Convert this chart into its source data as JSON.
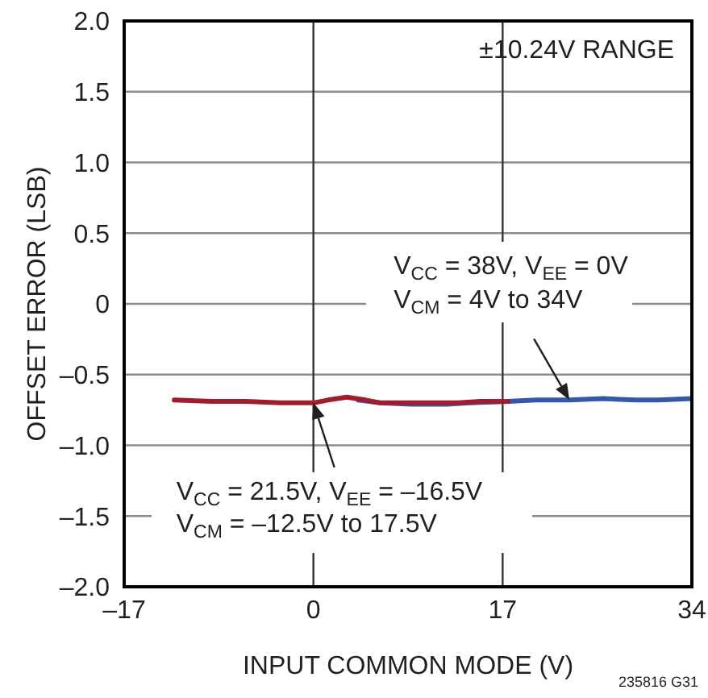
{
  "chart_data": {
    "type": "line",
    "xlabel": "INPUT COMMON MODE (V)",
    "ylabel": "OFFSET ERROR (LSB)",
    "annotations": [
      "±10.24V RANGE",
      "V$_{CC}$ = 38V, V$_{EE}$ = 0V\nV$_{CM}$ = 4V to 34V",
      "V$_{CC}$ = 21.5V, V$_{EE}$ = –16.5V\nV$_{CM}$ = –12.5V to 17.5V",
      "235816 G31"
    ],
    "series": [
      {
        "color": "#3458a8",
        "x": [
          4,
          6,
          9,
          12,
          14,
          17.5,
          20,
          23,
          26,
          29,
          31,
          34
        ],
        "values": [
          -0.68,
          -0.7,
          -0.71,
          -0.71,
          -0.7,
          -0.69,
          -0.68,
          -0.68,
          -0.67,
          -0.68,
          -0.68,
          -0.67
        ]
      },
      {
        "color": "#a01c2f",
        "x": [
          -12.5,
          -9,
          -6,
          -3,
          0,
          1.3,
          3,
          4.7,
          6,
          8,
          10.5,
          13,
          15,
          17.5
        ],
        "values": [
          -0.68,
          -0.69,
          -0.69,
          -0.7,
          -0.7,
          -0.68,
          -0.66,
          -0.68,
          -0.7,
          -0.7,
          -0.7,
          -0.7,
          -0.69,
          -0.69
        ]
      }
    ],
    "xlim": [
      -17,
      34
    ],
    "xticks": [
      {
        "value": -17,
        "label": "–17"
      },
      0,
      17,
      34
    ],
    "ylim": [
      -2,
      2
    ],
    "yticks": [
      {
        "value": 2,
        "label": "2.0"
      },
      1.5,
      {
        "value": 1,
        "label": "1.0"
      },
      0.5,
      0,
      {
        "value": -0.5,
        "label": "–0.5"
      },
      {
        "value": -1,
        "label": "–1.0"
      },
      {
        "value": -1.5,
        "label": "–1.5"
      },
      {
        "value": -2,
        "label": "–2.0"
      }
    ],
    "grid": true
  }
}
